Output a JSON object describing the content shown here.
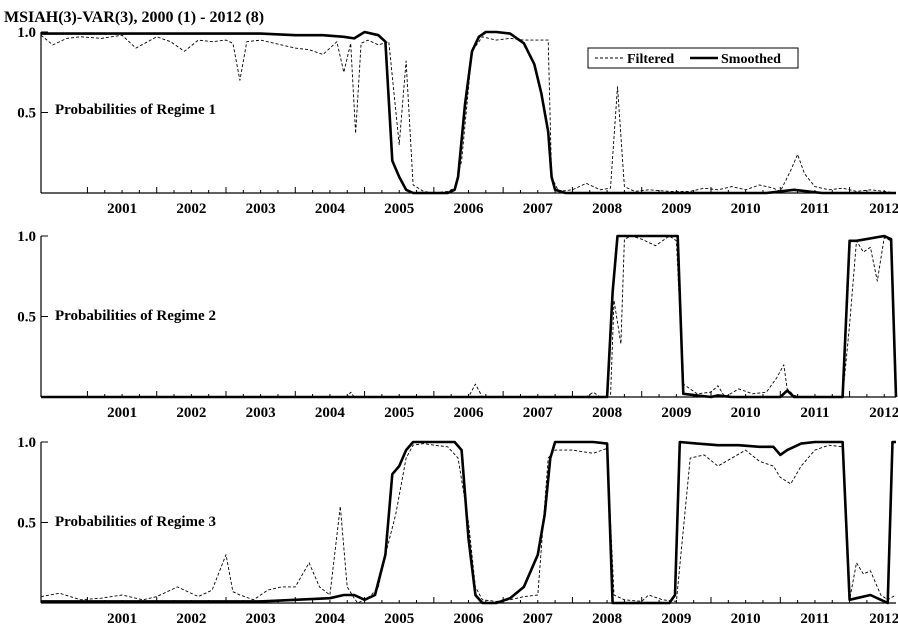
{
  "chart_data": {
    "type": "line",
    "title": "MSIAH(3)-VAR(3), 2000 (1) - 2012 (8)",
    "legend": {
      "position": "top-right",
      "entries": [
        {
          "name": "Filtered",
          "style": "dashed"
        },
        {
          "name": "Smoothed",
          "style": "solid"
        }
      ]
    },
    "xlim": [
      2000.33,
      2012.67
    ],
    "ylim": [
      0,
      1
    ],
    "ytick_labels": [
      "0.5",
      "1.0"
    ],
    "xtick_labels": [
      "2001",
      "2002",
      "2003",
      "2004",
      "2005",
      "2006",
      "2007",
      "2008",
      "2009",
      "2010",
      "2011",
      "2012"
    ],
    "panels": [
      {
        "label": "Probabilities of Regime 1",
        "ytick_labels": [
          "0.5",
          "1.0"
        ],
        "series": [
          {
            "name": "Filtered",
            "x": [
              2000.33,
              2000.5,
              2000.7,
              2000.9,
              2001.2,
              2001.5,
              2001.7,
              2002.0,
              2002.2,
              2002.4,
              2002.6,
              2002.8,
              2003.0,
              2003.1,
              2003.2,
              2003.3,
              2003.5,
              2003.7,
              2004.0,
              2004.2,
              2004.4,
              2004.6,
              2004.7,
              2004.8,
              2004.87,
              2004.95,
              2005.05,
              2005.2,
              2005.35,
              2005.5,
              2005.6,
              2005.7,
              2005.85,
              2006.0,
              2006.2,
              2006.3,
              2006.4,
              2006.55,
              2006.7,
              2006.9,
              2007.1,
              2007.3,
              2007.5,
              2007.65,
              2007.7,
              2007.8,
              2008.0,
              2008.2,
              2008.4,
              2008.55,
              2008.65,
              2008.75,
              2008.9,
              2009.1,
              2009.4,
              2009.7,
              2009.9,
              2010.1,
              2010.3,
              2010.5,
              2010.7,
              2010.9,
              2011.0,
              2011.15,
              2011.25,
              2011.35,
              2011.5,
              2011.7,
              2011.9,
              2012.1,
              2012.3,
              2012.5,
              2012.67
            ],
            "y": [
              0.98,
              0.92,
              0.96,
              0.97,
              0.96,
              0.98,
              0.9,
              0.97,
              0.94,
              0.88,
              0.95,
              0.94,
              0.95,
              0.93,
              0.7,
              0.94,
              0.95,
              0.93,
              0.9,
              0.89,
              0.86,
              0.94,
              0.75,
              0.93,
              0.37,
              0.93,
              0.95,
              0.92,
              0.94,
              0.3,
              0.82,
              0.05,
              0.01,
              0.0,
              0.01,
              0.03,
              0.2,
              0.88,
              0.97,
              0.95,
              0.96,
              0.95,
              0.95,
              0.95,
              0.1,
              0.01,
              0.02,
              0.06,
              0.02,
              0.03,
              0.66,
              0.04,
              0.01,
              0.02,
              0.01,
              0.01,
              0.03,
              0.02,
              0.04,
              0.02,
              0.05,
              0.03,
              0.01,
              0.14,
              0.24,
              0.12,
              0.04,
              0.02,
              0.03,
              0.01,
              0.02,
              0.01,
              0.0
            ]
          },
          {
            "name": "Smoothed",
            "x": [
              2000.33,
              2000.8,
              2001.2,
              2001.7,
              2002.1,
              2002.6,
              2003.0,
              2003.5,
              2004.0,
              2004.4,
              2004.7,
              2004.85,
              2005.0,
              2005.2,
              2005.3,
              2005.4,
              2005.5,
              2005.6,
              2005.7,
              2005.8,
              2006.0,
              2006.2,
              2006.3,
              2006.35,
              2006.45,
              2006.55,
              2006.65,
              2006.75,
              2006.9,
              2007.1,
              2007.3,
              2007.45,
              2007.55,
              2007.65,
              2007.7,
              2007.75,
              2007.9,
              2008.3,
              2008.8,
              2009.3,
              2009.8,
              2010.3,
              2010.8,
              2011.0,
              2011.2,
              2011.4,
              2011.6,
              2012.0,
              2012.67
            ],
            "y": [
              0.99,
              0.99,
              0.99,
              0.99,
              0.99,
              0.99,
              0.99,
              0.99,
              0.98,
              0.98,
              0.97,
              0.96,
              1.0,
              0.98,
              0.94,
              0.2,
              0.1,
              0.02,
              0.0,
              0.0,
              0.0,
              0.0,
              0.02,
              0.1,
              0.55,
              0.88,
              0.97,
              1.0,
              1.0,
              0.99,
              0.93,
              0.8,
              0.62,
              0.38,
              0.1,
              0.02,
              0.0,
              0.0,
              0.0,
              0.0,
              0.0,
              0.0,
              0.0,
              0.01,
              0.02,
              0.01,
              0.0,
              0.0,
              0.0
            ]
          }
        ]
      },
      {
        "label": "Probabilities of Regime 2",
        "ytick_labels": [
          "0.5",
          "1.0"
        ],
        "series": [
          {
            "name": "Filtered",
            "x": [
              2000.33,
              2004.75,
              2004.8,
              2004.85,
              2006.5,
              2006.6,
              2006.7,
              2008.2,
              2008.3,
              2008.4,
              2008.55,
              2008.6,
              2008.7,
              2008.75,
              2008.85,
              2009.0,
              2009.2,
              2009.4,
              2009.5,
              2009.6,
              2009.8,
              2010.0,
              2010.1,
              2010.2,
              2010.4,
              2010.6,
              2010.8,
              2010.95,
              2011.05,
              2011.1,
              2011.2,
              2011.3,
              2011.5,
              2011.9,
              2012.0,
              2012.1,
              2012.2,
              2012.3,
              2012.4,
              2012.5,
              2012.6,
              2012.67
            ],
            "y": [
              0.0,
              0.0,
              0.03,
              0.0,
              0.0,
              0.08,
              0.0,
              0.0,
              0.03,
              0.0,
              0.0,
              0.6,
              0.33,
              0.98,
              1.0,
              0.98,
              0.94,
              1.0,
              0.97,
              0.08,
              0.02,
              0.03,
              0.07,
              0.0,
              0.05,
              0.02,
              0.03,
              0.12,
              0.2,
              0.05,
              0.01,
              0.0,
              0.0,
              0.0,
              0.45,
              0.97,
              0.9,
              0.93,
              0.72,
              0.99,
              0.97,
              0.02
            ]
          },
          {
            "name": "Smoothed",
            "x": [
              2000.33,
              2008.5,
              2008.58,
              2008.65,
              2009.0,
              2009.4,
              2009.52,
              2009.6,
              2010.0,
              2010.1,
              2010.3,
              2011.0,
              2011.1,
              2011.2,
              2011.9,
              2012.0,
              2012.1,
              2012.5,
              2012.6,
              2012.67
            ],
            "y": [
              0.0,
              0.0,
              0.65,
              1.0,
              1.0,
              1.0,
              1.0,
              0.02,
              0.0,
              0.01,
              0.0,
              0.0,
              0.04,
              0.0,
              0.0,
              0.97,
              0.97,
              1.0,
              0.98,
              0.0
            ]
          }
        ]
      },
      {
        "label": "Probabilities of Regime 3",
        "ytick_labels": [
          "0.5",
          "1.0"
        ],
        "series": [
          {
            "name": "Filtered",
            "x": [
              2000.33,
              2000.6,
              2000.9,
              2001.2,
              2001.5,
              2001.8,
              2002.0,
              2002.3,
              2002.6,
              2002.8,
              2003.0,
              2003.1,
              2003.2,
              2003.4,
              2003.6,
              2003.8,
              2004.0,
              2004.2,
              2004.35,
              2004.5,
              2004.65,
              2004.75,
              2004.85,
              2004.9,
              2005.0,
              2005.1,
              2005.2,
              2005.3,
              2005.45,
              2005.6,
              2005.7,
              2005.85,
              2006.0,
              2006.2,
              2006.35,
              2006.5,
              2006.6,
              2006.7,
              2006.9,
              2007.1,
              2007.3,
              2007.5,
              2007.65,
              2007.75,
              2008.0,
              2008.3,
              2008.5,
              2008.6,
              2008.75,
              2009.0,
              2009.1,
              2009.3,
              2009.5,
              2009.7,
              2009.9,
              2010.1,
              2010.3,
              2010.5,
              2010.7,
              2010.9,
              2011.0,
              2011.15,
              2011.3,
              2011.5,
              2011.7,
              2011.9,
              2012.0,
              2012.1,
              2012.2,
              2012.3,
              2012.45,
              2012.55,
              2012.67
            ],
            "y": [
              0.04,
              0.06,
              0.02,
              0.03,
              0.05,
              0.02,
              0.04,
              0.1,
              0.04,
              0.08,
              0.3,
              0.07,
              0.05,
              0.02,
              0.08,
              0.1,
              0.1,
              0.25,
              0.1,
              0.05,
              0.6,
              0.1,
              0.03,
              0.0,
              0.02,
              0.05,
              0.1,
              0.3,
              0.55,
              0.9,
              0.98,
              0.99,
              0.98,
              0.97,
              0.9,
              0.5,
              0.1,
              0.02,
              0.01,
              0.02,
              0.04,
              0.05,
              0.9,
              0.95,
              0.95,
              0.93,
              0.96,
              0.05,
              0.02,
              0.01,
              0.05,
              0.02,
              0.01,
              0.9,
              0.92,
              0.85,
              0.9,
              0.95,
              0.88,
              0.85,
              0.78,
              0.74,
              0.85,
              0.95,
              0.98,
              0.97,
              0.02,
              0.25,
              0.18,
              0.2,
              0.05,
              0.02,
              0.05
            ]
          },
          {
            "name": "Smoothed",
            "x": [
              2000.33,
              2001.0,
              2002.0,
              2003.0,
              2003.5,
              2004.0,
              2004.5,
              2004.7,
              2004.85,
              2005.0,
              2005.15,
              2005.3,
              2005.4,
              2005.5,
              2005.6,
              2005.7,
              2006.0,
              2006.2,
              2006.3,
              2006.4,
              2006.5,
              2006.6,
              2006.7,
              2006.9,
              2007.1,
              2007.3,
              2007.5,
              2007.6,
              2007.68,
              2007.75,
              2008.0,
              2008.3,
              2008.5,
              2008.58,
              2008.65,
              2009.0,
              2009.4,
              2009.48,
              2009.55,
              2009.8,
              2010.1,
              2010.4,
              2010.7,
              2010.9,
              2011.0,
              2011.1,
              2011.3,
              2011.5,
              2011.9,
              2012.0,
              2012.1,
              2012.3,
              2012.45,
              2012.55,
              2012.62,
              2012.67
            ],
            "y": [
              0.01,
              0.01,
              0.01,
              0.01,
              0.01,
              0.02,
              0.03,
              0.05,
              0.05,
              0.02,
              0.05,
              0.3,
              0.8,
              0.85,
              0.95,
              1.0,
              1.0,
              1.0,
              1.0,
              0.95,
              0.4,
              0.05,
              0.0,
              0.0,
              0.03,
              0.1,
              0.3,
              0.55,
              0.9,
              1.0,
              1.0,
              1.0,
              0.99,
              0.0,
              0.0,
              0.0,
              0.0,
              0.05,
              1.0,
              0.99,
              0.98,
              0.98,
              0.97,
              0.97,
              0.92,
              0.95,
              0.99,
              1.0,
              1.0,
              0.02,
              0.03,
              0.05,
              0.02,
              0.0,
              1.0,
              1.0
            ]
          }
        ]
      }
    ]
  }
}
